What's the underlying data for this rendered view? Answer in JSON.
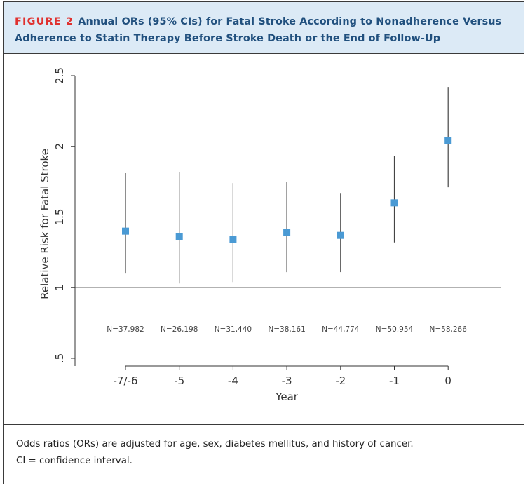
{
  "header": {
    "figure_label": "FIGURE 2",
    "title_line1": "Annual ORs (95% CIs) for Fatal Stroke According to Nonadherence Versus",
    "title_line2": "Adherence to Statin Therapy Before Stroke Death or the End of Follow-Up"
  },
  "footer": {
    "line1": "Odds ratios (ORs) are adjusted for age, sex, diabetes mellitus, and history of cancer.",
    "line2": "CI = confidence interval."
  },
  "colors": {
    "header_bg": "#dceaf6",
    "title_text": "#21507e",
    "figure_label": "#e0312f",
    "marker": "#4a9ad4",
    "whisker": "#444444",
    "reference_line": "#999999"
  },
  "chart_data": {
    "type": "scatter",
    "xlabel": "Year",
    "ylabel": "Relative Risk for Fatal Stroke",
    "ylim": [
      0.5,
      2.5
    ],
    "yticks": [
      ".5",
      "1",
      "1.5",
      "2",
      "2.5"
    ],
    "reference_line": 1,
    "categories": [
      "-7/-6",
      "-5",
      "-4",
      "-3",
      "-2",
      "-1",
      "0"
    ],
    "estimates": [
      1.4,
      1.36,
      1.34,
      1.39,
      1.37,
      1.6,
      2.04
    ],
    "ci_lower": [
      1.1,
      1.03,
      1.04,
      1.11,
      1.11,
      1.32,
      1.71
    ],
    "ci_upper": [
      1.81,
      1.82,
      1.74,
      1.75,
      1.67,
      1.93,
      2.42
    ],
    "n_labels": [
      "N=37,982",
      "N=26,198",
      "N=31,440",
      "N=38,161",
      "N=44,774",
      "N=50,954",
      "N=58,266"
    ],
    "grid": false,
    "legend": "none"
  }
}
